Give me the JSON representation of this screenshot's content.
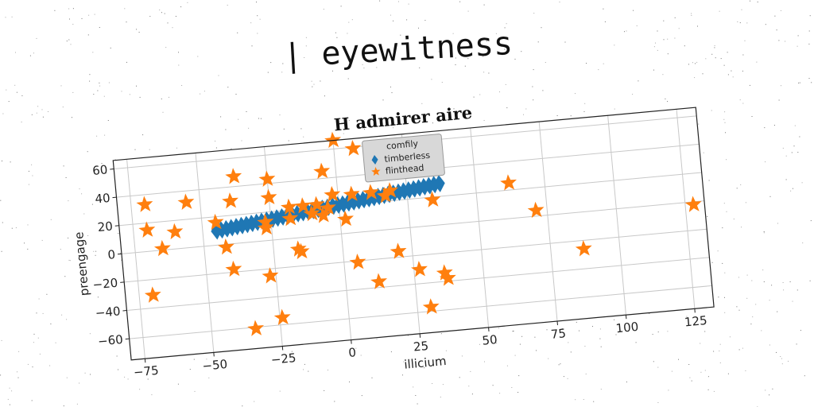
{
  "figure": {
    "suptitle": "| eyewitness"
  },
  "chart_data": {
    "type": "scatter",
    "title": "H admirer aire",
    "xlabel": "illicium",
    "ylabel": "preengage",
    "xlim": [
      -80,
      132
    ],
    "ylim": [
      -75,
      66
    ],
    "xticks": [
      -75,
      -50,
      -25,
      0,
      25,
      50,
      75,
      100,
      125
    ],
    "yticks": [
      -60,
      -40,
      -20,
      0,
      20,
      40,
      60
    ],
    "grid": true,
    "legend": {
      "title": "comfily",
      "placement": "top-center"
    },
    "series": [
      {
        "name": "timberless",
        "marker": "diamond",
        "color": "#1f77b4",
        "line": {
          "x_start": -45,
          "x_end": 37,
          "y_start": 10,
          "y_end": 29,
          "count": 45
        }
      },
      {
        "name": "flinthead",
        "marker": "star",
        "color": "#ff7f0e",
        "points": [
          [
            -70,
            33
          ],
          [
            -70,
            15
          ],
          [
            -70,
            -31
          ],
          [
            -65,
            1
          ],
          [
            -60,
            12
          ],
          [
            -55,
            32
          ],
          [
            -45,
            16
          ],
          [
            -42,
            -2
          ],
          [
            -40,
            -18
          ],
          [
            -39,
            30
          ],
          [
            -37,
            47
          ],
          [
            -27,
            13
          ],
          [
            -27,
            9
          ],
          [
            -27,
            -25
          ],
          [
            -25,
            43
          ],
          [
            -25,
            30
          ],
          [
            -24,
            -55
          ],
          [
            -34,
            -61
          ],
          [
            -18,
            14
          ],
          [
            -18,
            22
          ],
          [
            -16,
            -8
          ],
          [
            -15,
            -10
          ],
          [
            -13,
            22
          ],
          [
            -10,
            16
          ],
          [
            -8,
            22
          ],
          [
            -6,
            14
          ],
          [
            -5,
            45
          ],
          [
            -4,
            19
          ],
          [
            -2,
            28
          ],
          [
            0,
            66
          ],
          [
            2,
            10
          ],
          [
            5,
            27
          ],
          [
            5,
            -21
          ],
          [
            7,
            59
          ],
          [
            12,
            27
          ],
          [
            12,
            -36
          ],
          [
            17,
            24
          ],
          [
            19,
            27
          ],
          [
            20,
            -16
          ],
          [
            23,
            40
          ],
          [
            27,
            -30
          ],
          [
            30,
            -57
          ],
          [
            34,
            18
          ],
          [
            36,
            -34
          ],
          [
            37,
            -38
          ],
          [
            62,
            25
          ],
          [
            71,
            4
          ],
          [
            87,
            -26
          ],
          [
            128,
            -2
          ]
        ]
      }
    ]
  }
}
